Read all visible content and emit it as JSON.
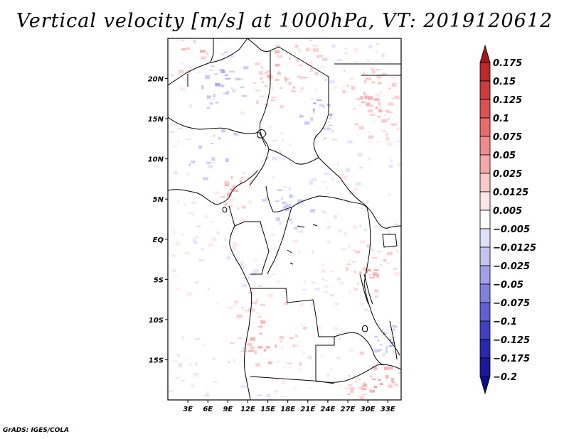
{
  "title": "Vertical velocity [m/s] at 1000hPa, VT: 2019120612",
  "credit": "GrADS: IGES/COLA",
  "map": {
    "projection": "lat-lon",
    "lon_range": [
      0,
      35
    ],
    "lat_range": [
      -20,
      25
    ],
    "lat_ticks": [
      {
        "value": 20,
        "label": "20N"
      },
      {
        "value": 15,
        "label": "15N"
      },
      {
        "value": 10,
        "label": "10N"
      },
      {
        "value": 5,
        "label": "5N"
      },
      {
        "value": 0,
        "label": "EQ"
      },
      {
        "value": -5,
        "label": "5S"
      },
      {
        "value": -10,
        "label": "10S"
      },
      {
        "value": -15,
        "label": "15S"
      }
    ],
    "lon_ticks": [
      {
        "value": 3,
        "label": "3E"
      },
      {
        "value": 6,
        "label": "6E"
      },
      {
        "value": 9,
        "label": "9E"
      },
      {
        "value": 12,
        "label": "12E"
      },
      {
        "value": 15,
        "label": "15E"
      },
      {
        "value": 18,
        "label": "18E"
      },
      {
        "value": 21,
        "label": "21E"
      },
      {
        "value": 24,
        "label": "24E"
      },
      {
        "value": 27,
        "label": "27E"
      },
      {
        "value": 30,
        "label": "30E"
      },
      {
        "value": 33,
        "label": "33E"
      }
    ]
  },
  "colorbar": {
    "levels": [
      "0.175",
      "0.15",
      "0.125",
      "0.1",
      "0.075",
      "0.05",
      "0.025",
      "0.0125",
      "0.005",
      "−0.005",
      "−0.0125",
      "−0.025",
      "−0.05",
      "−0.075",
      "−0.1",
      "−0.125",
      "−0.175",
      "−0.2"
    ],
    "colors": [
      "#a01818",
      "#c02828",
      "#d03a3a",
      "#e05050",
      "#ec6a6a",
      "#f28a8a",
      "#f6a8a8",
      "#fac8c8",
      "#fde6e6",
      "#ffffff",
      "#e0e0fa",
      "#c4c4f4",
      "#a0a0ec",
      "#8080e0",
      "#6060d4",
      "#4040c4",
      "#2828b0",
      "#1a1aa0",
      "#0c0c90"
    ]
  }
}
